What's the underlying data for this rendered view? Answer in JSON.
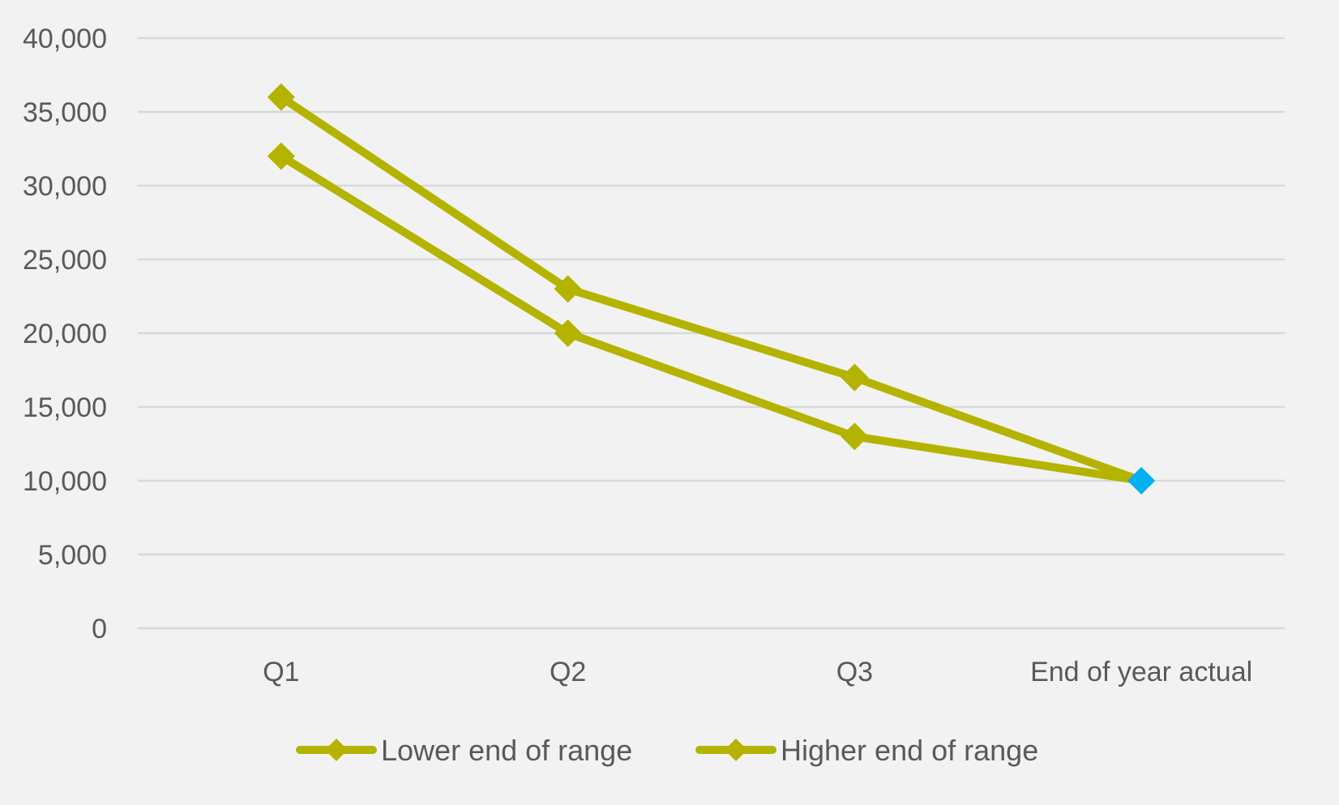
{
  "chart_data": {
    "type": "line",
    "categories": [
      "Q1",
      "Q2",
      "Q3",
      "End of year actual"
    ],
    "series": [
      {
        "name": "Lower end of range",
        "values": [
          32000,
          20000,
          13000,
          10000
        ],
        "color": "#b3b300"
      },
      {
        "name": "Higher end of range",
        "values": [
          36000,
          23000,
          17000,
          10000
        ],
        "color": "#b3b300"
      }
    ],
    "highlight_point": {
      "category": "End of year actual",
      "value": 10000,
      "color": "#00b0f0"
    },
    "y_ticks": [
      "0",
      "5,000",
      "10,000",
      "15,000",
      "20,000",
      "25,000",
      "30,000",
      "35,000",
      "40,000"
    ],
    "ylim": [
      0,
      40000
    ],
    "y_step": 5000,
    "grid": true,
    "legend_position": "bottom",
    "title": "",
    "xlabel": "",
    "ylabel": ""
  },
  "colors": {
    "background": "#f2f2f2",
    "gridline": "#d9d9d9",
    "text": "#595959"
  }
}
